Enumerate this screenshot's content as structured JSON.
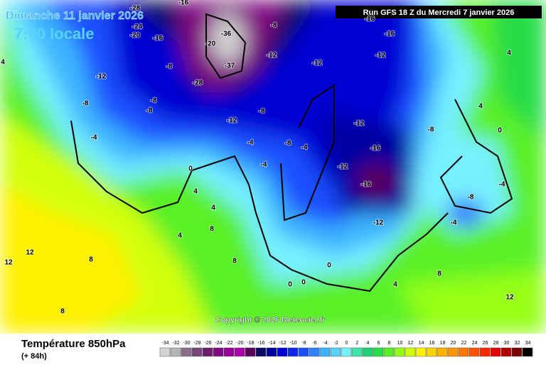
{
  "header": {
    "date": "Dimanche 11 janvier 2026",
    "time": "7:00 locale",
    "run": "Run GFS 18 Z du Mercredi 7 janvier 2026"
  },
  "copyright": "Copyright © 2026 Meteociel.fr",
  "footer": {
    "title": "Température 850hPa",
    "lead": "(+ 84h)"
  },
  "scale": [
    {
      "value": -34,
      "color": "#d2d2d2"
    },
    {
      "value": -32,
      "color": "#b4b4b4"
    },
    {
      "value": -30,
      "color": "#8c6e8c"
    },
    {
      "value": -28,
      "color": "#784678"
    },
    {
      "value": -26,
      "color": "#6e1e6e"
    },
    {
      "value": -24,
      "color": "#820a82"
    },
    {
      "value": -22,
      "color": "#960096"
    },
    {
      "value": -20,
      "color": "#aa00aa"
    },
    {
      "value": -18,
      "color": "#5a005a"
    },
    {
      "value": -16,
      "color": "#0a0a64"
    },
    {
      "value": -14,
      "color": "#0000a0"
    },
    {
      "value": -12,
      "color": "#0000d2"
    },
    {
      "value": -10,
      "color": "#0a28f0"
    },
    {
      "value": -8,
      "color": "#1e50ff"
    },
    {
      "value": -6,
      "color": "#2d82ff"
    },
    {
      "value": -4,
      "color": "#3cb4ff"
    },
    {
      "value": -2,
      "color": "#5ad2ff"
    },
    {
      "value": 0,
      "color": "#78f0ff"
    },
    {
      "value": 2,
      "color": "#3ce6aa"
    },
    {
      "value": 4,
      "color": "#1ed278"
    },
    {
      "value": 6,
      "color": "#28dc46"
    },
    {
      "value": 8,
      "color": "#5af028"
    },
    {
      "value": 10,
      "color": "#96ff14"
    },
    {
      "value": 12,
      "color": "#d2ff0a"
    },
    {
      "value": 14,
      "color": "#fff000"
    },
    {
      "value": 16,
      "color": "#ffd200"
    },
    {
      "value": 18,
      "color": "#ffb400"
    },
    {
      "value": 20,
      "color": "#ff9600"
    },
    {
      "value": 22,
      "color": "#ff7800"
    },
    {
      "value": 24,
      "color": "#ff5000"
    },
    {
      "value": 26,
      "color": "#ff2800"
    },
    {
      "value": 28,
      "color": "#e60000"
    },
    {
      "value": 30,
      "color": "#b40000"
    },
    {
      "value": 32,
      "color": "#780000"
    },
    {
      "value": 34,
      "color": "#000000"
    }
  ],
  "contour_labels": [
    -28,
    -24,
    -20,
    -16,
    -20,
    -16,
    -12,
    -8,
    -8,
    -8,
    -8,
    -12,
    -12,
    -12,
    -8,
    -16,
    -16,
    -8,
    -12,
    -12,
    -8,
    -16,
    -12,
    -16,
    -12,
    -8,
    -4,
    -4,
    -4,
    -4,
    0,
    4,
    4,
    8,
    4,
    8,
    8,
    0,
    0,
    0,
    4,
    8,
    12,
    12,
    12,
    8,
    0,
    4,
    4,
    4,
    -4,
    -8,
    -4,
    -37,
    -28,
    -36
  ]
}
